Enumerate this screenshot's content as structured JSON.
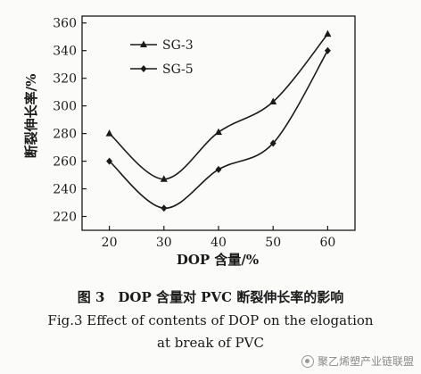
{
  "chart_data": {
    "type": "line",
    "ylabel": "断裂伸长率/%",
    "xlabel": "DOP 含量/%",
    "x": [
      20,
      30,
      40,
      50,
      60
    ],
    "xlim": [
      15,
      65
    ],
    "ylim": [
      210,
      365
    ],
    "xticks": [
      20,
      30,
      40,
      50,
      60
    ],
    "yticks": [
      220,
      240,
      260,
      280,
      300,
      320,
      340,
      360
    ],
    "series": [
      {
        "name": "SG-3",
        "marker": "triangle",
        "values": [
          280,
          247,
          281,
          303,
          352
        ]
      },
      {
        "name": "SG-5",
        "marker": "diamond",
        "values": [
          260,
          226,
          254,
          273,
          340
        ]
      }
    ],
    "legend_position": "top-left",
    "grid": false
  },
  "caption": {
    "chinese": "图 3　DOP 含量对 PVC 断裂伸长率的影响",
    "english_line1": "Fig.3  Effect of contents of DOP on the elogation",
    "english_line2": "at break of PVC"
  },
  "watermark": {
    "text": "聚乙烯塑产业链联盟",
    "icon": "wechat-icon"
  }
}
